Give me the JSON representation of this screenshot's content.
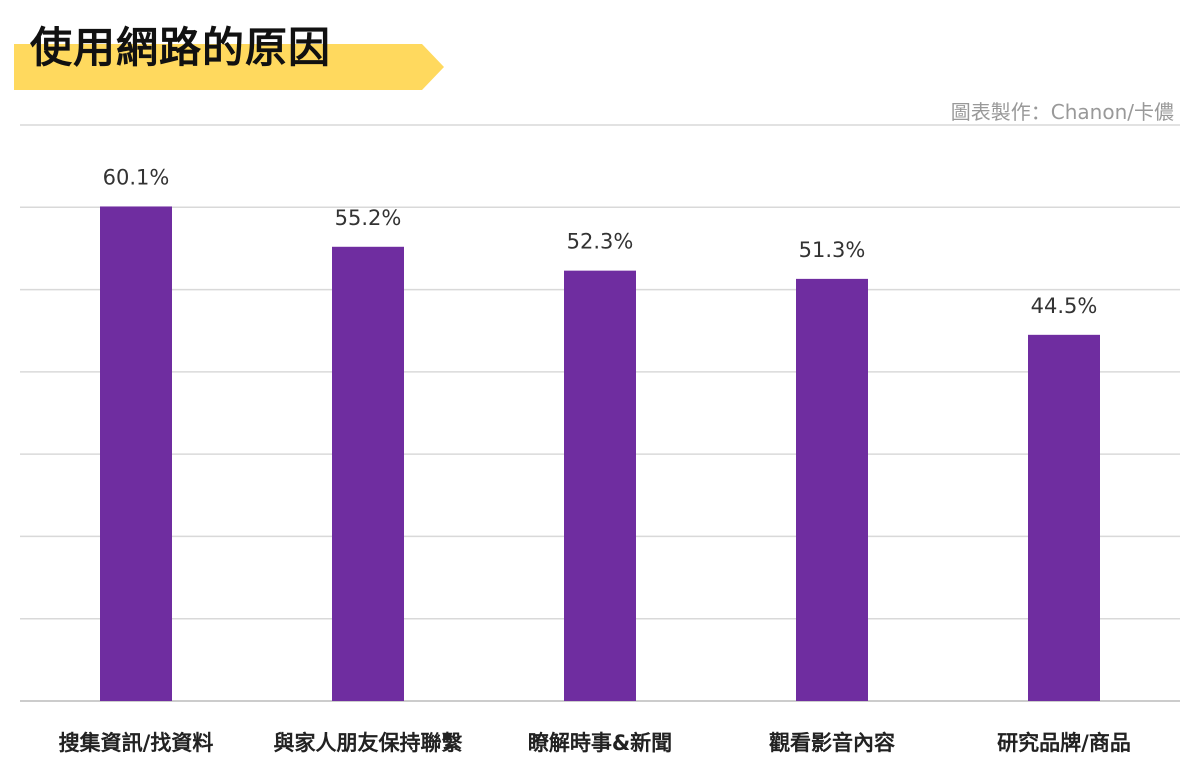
{
  "title": "使用網路的原因",
  "credit": "圖表製作：Chanon/卡儂",
  "colors": {
    "bar": "#6f2da0",
    "banner": "#ffd95e",
    "grid": "#d9d9d9"
  },
  "chart_data": {
    "type": "bar",
    "categories": [
      "搜集資訊/找資料",
      "與家人朋友保持聯繫",
      "瞭解時事&新聞",
      "觀看影音內容",
      "研究品牌/商品"
    ],
    "values": [
      60.1,
      55.2,
      52.3,
      51.3,
      44.5
    ],
    "value_labels": [
      "60.1%",
      "55.2%",
      "52.3%",
      "51.3%",
      "44.5%"
    ],
    "title": "使用網路的原因",
    "ylim": [
      0,
      70
    ],
    "grid": true,
    "legend": "none"
  }
}
